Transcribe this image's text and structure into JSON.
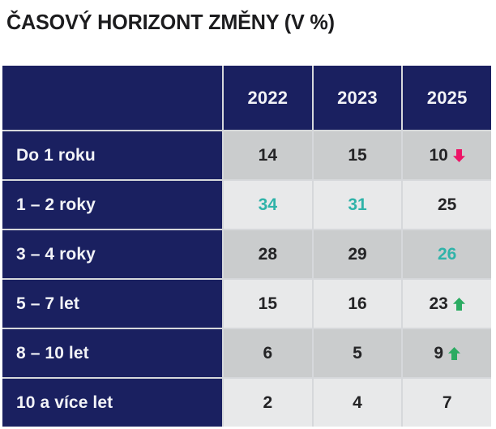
{
  "title": "ČASOVÝ HORIZONT ZMĚNY (V %)",
  "colors": {
    "navy": "#1a2060",
    "separator": "#d6d8db",
    "row_dark": "#cacccd",
    "row_light": "#e8e9ea",
    "teal": "#2fb3a9",
    "pink": "#ed1467",
    "green": "#2bab62",
    "text_dark": "#242426",
    "header_text": "#f2f3f7"
  },
  "table": {
    "columns": [
      "2022",
      "2023",
      "2025"
    ],
    "rows": [
      {
        "label": "Do 1 roku",
        "values": [
          {
            "v": "14"
          },
          {
            "v": "15"
          },
          {
            "v": "10",
            "arrow": "down"
          }
        ]
      },
      {
        "label": "1 – 2 roky",
        "values": [
          {
            "v": "34",
            "highlight": "teal"
          },
          {
            "v": "31",
            "highlight": "teal"
          },
          {
            "v": "25"
          }
        ]
      },
      {
        "label": "3 – 4 roky",
        "values": [
          {
            "v": "28"
          },
          {
            "v": "29"
          },
          {
            "v": "26",
            "highlight": "teal"
          }
        ]
      },
      {
        "label": "5 – 7 let",
        "values": [
          {
            "v": "15"
          },
          {
            "v": "16"
          },
          {
            "v": "23",
            "arrow": "up"
          }
        ]
      },
      {
        "label": "8 – 10 let",
        "values": [
          {
            "v": "6"
          },
          {
            "v": "5"
          },
          {
            "v": "9",
            "arrow": "up"
          }
        ]
      },
      {
        "label": "10 a více let",
        "values": [
          {
            "v": "2"
          },
          {
            "v": "4"
          },
          {
            "v": "7"
          }
        ]
      }
    ]
  },
  "chart_data": {
    "type": "table",
    "title": "ČASOVÝ HORIZONT ZMĚNY (V %)",
    "categories": [
      "2022",
      "2023",
      "2025"
    ],
    "series": [
      {
        "name": "Do 1 roku",
        "values": [
          14,
          15,
          10
        ]
      },
      {
        "name": "1 – 2 roky",
        "values": [
          34,
          31,
          25
        ]
      },
      {
        "name": "3 – 4 roky",
        "values": [
          28,
          29,
          26
        ]
      },
      {
        "name": "5 – 7 let",
        "values": [
          15,
          16,
          23
        ]
      },
      {
        "name": "8 – 10 let",
        "values": [
          6,
          5,
          9
        ]
      },
      {
        "name": "10 a více let",
        "values": [
          2,
          4,
          7
        ]
      }
    ],
    "annotations": [
      "Do 1 roku 2025: 10 with pink down arrow (decrease)",
      "1 – 2 roky 2022 (34) and 2023 (31) shown in teal",
      "3 – 4 roky 2025 (26) shown in teal",
      "5 – 7 let 2025: 23 with green up arrow (increase)",
      "8 – 10 let 2025: 9 with green up arrow (increase)"
    ],
    "layout": "row labels in navy left column, year headers in navy top row, alternating gray data rows"
  }
}
